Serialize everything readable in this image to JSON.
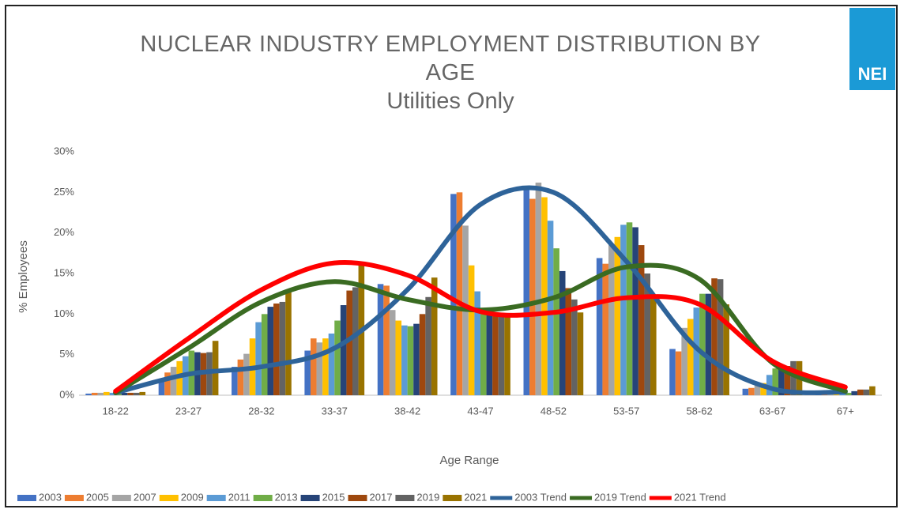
{
  "logo": "NEI",
  "chart_data": {
    "type": "bar",
    "title": "NUCLEAR INDUSTRY EMPLOYMENT DISTRIBUTION BY AGE",
    "subtitle": "Utilities Only",
    "x_label": "Age Range",
    "y_label": "% Employees",
    "categories": [
      "18-22",
      "23-27",
      "28-32",
      "33-37",
      "38-42",
      "43-47",
      "48-52",
      "53-57",
      "58-62",
      "63-67",
      "67+"
    ],
    "ylim": [
      0,
      30
    ],
    "yticks": [
      {
        "value": 0,
        "label": "0%"
      },
      {
        "value": 5,
        "label": "5%"
      },
      {
        "value": 10,
        "label": "10%"
      },
      {
        "value": 15,
        "label": "15%"
      },
      {
        "value": 20,
        "label": "20%"
      },
      {
        "value": 25,
        "label": "25%"
      },
      {
        "value": 30,
        "label": "30%"
      }
    ],
    "grid": false,
    "legend": "bottom",
    "series": [
      {
        "name": "2003",
        "color": "#4472c4",
        "values": [
          0.2,
          2.0,
          3.5,
          5.5,
          13.7,
          24.8,
          25.6,
          16.9,
          5.7,
          0.8,
          0.1
        ]
      },
      {
        "name": "2005",
        "color": "#ed7d31",
        "values": [
          0.3,
          2.8,
          4.4,
          7.0,
          13.5,
          25.0,
          24.2,
          16.2,
          5.4,
          0.9,
          0.1
        ]
      },
      {
        "name": "2007",
        "color": "#a5a5a5",
        "values": [
          0.3,
          3.5,
          5.1,
          6.5,
          10.5,
          20.9,
          26.2,
          18.5,
          8.3,
          1.2,
          0.1
        ]
      },
      {
        "name": "2009",
        "color": "#ffc000",
        "values": [
          0.4,
          4.2,
          7.0,
          7.0,
          9.2,
          16.0,
          24.4,
          19.5,
          9.4,
          1.5,
          0.1
        ]
      },
      {
        "name": "2011",
        "color": "#5b9bd5",
        "values": [
          0.3,
          4.8,
          9.0,
          7.6,
          8.6,
          12.8,
          21.5,
          21.0,
          10.8,
          2.5,
          0.2
        ]
      },
      {
        "name": "2013",
        "color": "#70ad47",
        "values": [
          0.3,
          5.5,
          10.0,
          9.2,
          8.5,
          10.0,
          18.1,
          21.3,
          12.5,
          3.3,
          0.3
        ]
      },
      {
        "name": "2015",
        "color": "#264478",
        "values": [
          0.3,
          5.3,
          10.9,
          11.1,
          8.8,
          10.0,
          15.3,
          20.7,
          12.5,
          3.7,
          0.5
        ]
      },
      {
        "name": "2017",
        "color": "#9e480e",
        "values": [
          0.3,
          5.2,
          11.3,
          12.9,
          10.0,
          10.0,
          13.2,
          18.5,
          14.4,
          3.6,
          0.7
        ]
      },
      {
        "name": "2019",
        "color": "#636363",
        "values": [
          0.3,
          5.3,
          11.5,
          13.3,
          12.1,
          10.0,
          11.8,
          15.0,
          14.3,
          4.2,
          0.7
        ]
      },
      {
        "name": "2021",
        "color": "#997300",
        "values": [
          0.4,
          6.7,
          13.0,
          16.3,
          14.5,
          10.0,
          10.2,
          12.0,
          11.2,
          4.2,
          1.1
        ]
      },
      {
        "name": "2003 Trend",
        "type": "line",
        "color": "#2e6399",
        "values": [
          0.3,
          2.6,
          3.5,
          5.8,
          13.0,
          23.5,
          25.0,
          16.5,
          5.5,
          0.8,
          0.4
        ]
      },
      {
        "name": "2019 Trend",
        "type": "line",
        "color": "#3a6b22",
        "values": [
          0.3,
          5.8,
          11.5,
          14.0,
          11.8,
          10.5,
          12.0,
          15.8,
          14.3,
          4.0,
          0.5
        ]
      },
      {
        "name": "2021 Trend",
        "type": "line",
        "color": "#ff0000",
        "values": [
          0.5,
          7.0,
          13.0,
          16.3,
          14.8,
          10.3,
          10.2,
          12.0,
          11.2,
          4.2,
          1.0
        ]
      }
    ]
  }
}
